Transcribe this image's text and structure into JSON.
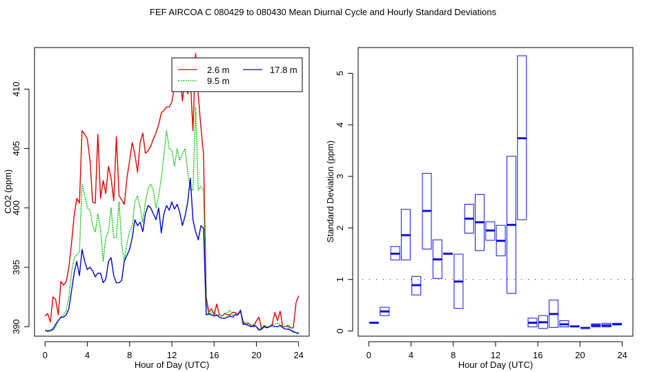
{
  "title": "FEF   AIRCOA C   080429 to 080430   Mean Diurnal Cycle and Hourly Standard Deviations",
  "colors": {
    "red": "#e00000",
    "green": "#00c000",
    "blue": "#0000d0",
    "box": "#1010e0"
  },
  "chart_data": [
    {
      "type": "line",
      "title": "",
      "xlabel": "Hour of Day (UTC)",
      "ylabel": "CO2 (ppm)",
      "xlim": [
        -1,
        25
      ],
      "ylim": [
        389.2,
        413.5
      ],
      "xticks": [
        "0",
        "4",
        "8",
        "12",
        "16",
        "20",
        "24"
      ],
      "yticks": [
        "390",
        "395",
        "400",
        "405",
        "410"
      ],
      "legend_position": "top-right",
      "x": [
        0,
        0.25,
        0.5,
        0.75,
        1,
        1.25,
        1.5,
        1.75,
        2,
        2.25,
        2.5,
        2.75,
        3,
        3.25,
        3.5,
        3.75,
        4,
        4.25,
        4.5,
        4.75,
        5,
        5.25,
        5.5,
        5.75,
        6,
        6.25,
        6.5,
        6.75,
        7,
        7.25,
        7.5,
        7.75,
        8,
        8.25,
        8.5,
        8.75,
        9,
        9.25,
        9.5,
        9.75,
        10,
        10.25,
        10.5,
        10.75,
        11,
        11.25,
        11.5,
        11.75,
        12,
        12.25,
        12.5,
        12.75,
        13,
        13.25,
        13.5,
        13.75,
        14,
        14.25,
        14.5,
        14.75,
        15,
        15.25,
        15.5,
        15.75,
        16,
        16.25,
        16.5,
        16.75,
        17,
        17.25,
        17.5,
        17.75,
        18,
        18.25,
        18.5,
        18.75,
        19,
        19.25,
        19.5,
        19.75,
        20,
        20.25,
        20.5,
        20.75,
        21,
        21.25,
        21.5,
        21.75,
        22,
        22.25,
        22.5,
        22.75,
        23,
        23.25,
        23.5,
        23.75,
        24
      ],
      "series": [
        {
          "name": "2.6 m",
          "color": "#e00000",
          "values": [
            390.9,
            391.1,
            390.4,
            392.5,
            392.3,
            391.0,
            393.8,
            393.5,
            393.8,
            395.0,
            397.0,
            399.3,
            400.8,
            400.4,
            406.5,
            406.2,
            405.8,
            404.0,
            400.5,
            400.4,
            406.2,
            400.8,
            402.3,
            401.2,
            403.5,
            402.5,
            400.6,
            406.0,
            401.0,
            400.7,
            400.3,
            402.5,
            404.0,
            405.5,
            404.5,
            403.0,
            405.5,
            406.3,
            404.6,
            404.8,
            405.2,
            405.8,
            406.3,
            407.0,
            408.0,
            408.2,
            408.5,
            408.5,
            408.9,
            410.3,
            409.8,
            411.5,
            409.0,
            411.0,
            409.6,
            410.8,
            406.5,
            413.0,
            409.5,
            406.8,
            404.5,
            392.5,
            391.2,
            391.5,
            391.0,
            391.9,
            391.0,
            390.9,
            391.1,
            391.0,
            391.0,
            391.2,
            391.2,
            391.0,
            391.3,
            390.4,
            390.2,
            390.3,
            390.1,
            390.0,
            390.5,
            390.8,
            389.8,
            390.1,
            389.9,
            390.0,
            390.2,
            391.2,
            390.5,
            391.3,
            390.0,
            390.0,
            390.1,
            389.9,
            389.9,
            392.0,
            392.6
          ]
        },
        {
          "name": "9.5 m",
          "color": "#00c000",
          "values": [
            389.7,
            389.7,
            389.6,
            389.7,
            390.0,
            390.5,
            390.8,
            391.0,
            391.3,
            392.5,
            394.5,
            395.8,
            396.0,
            396.3,
            402.0,
            401.0,
            400.0,
            399.8,
            398.5,
            398.0,
            399.5,
            398.2,
            395.5,
            397.5,
            398.0,
            400.0,
            397.5,
            397.5,
            400.5,
            397.0,
            395.5,
            397.0,
            398.0,
            398.5,
            400.5,
            401.0,
            400.0,
            398.8,
            400.5,
            401.6,
            402.0,
            401.5,
            400.0,
            401.0,
            402.5,
            404.5,
            406.5,
            405.0,
            404.8,
            403.5,
            405.0,
            404.0,
            404.5,
            405.0,
            403.0,
            401.5,
            401.5,
            408.5,
            401.5,
            401.8,
            401.5,
            392.0,
            391.0,
            391.2,
            391.3,
            390.9,
            391.0,
            390.9,
            391.1,
            391.2,
            391.4,
            391.0,
            391.0,
            391.0,
            391.3,
            390.2,
            390.4,
            390.3,
            390.1,
            390.2,
            390.0,
            389.8,
            389.9,
            390.1,
            390.0,
            390.0,
            390.2,
            390.2,
            390.3,
            390.2,
            390.0,
            390.0,
            390.0,
            389.7,
            389.5,
            389.5,
            389.5
          ]
        },
        {
          "name": "17.8 m",
          "color": "#0000d0",
          "values": [
            389.7,
            389.6,
            389.7,
            389.8,
            390.2,
            390.5,
            390.8,
            390.8,
            391.0,
            391.5,
            393.0,
            394.5,
            395.5,
            394.3,
            396.5,
            395.5,
            394.8,
            395.0,
            394.7,
            394.2,
            394.5,
            394.5,
            393.7,
            394.0,
            395.5,
            395.8,
            394.3,
            393.7,
            393.7,
            393.9,
            395.5,
            396.0,
            396.5,
            397.5,
            399.0,
            398.5,
            398.8,
            398.0,
            399.5,
            400.2,
            400.0,
            399.5,
            399.0,
            400.0,
            397.9,
            399.5,
            400.2,
            399.8,
            400.5,
            399.9,
            400.3,
            399.6,
            398.5,
            399.3,
            400.5,
            402.5,
            399.0,
            398.0,
            397.3,
            398.5,
            398.3,
            391.0,
            391.1,
            391.0,
            390.9,
            391.0,
            390.8,
            390.7,
            390.7,
            390.8,
            390.9,
            390.8,
            391.0,
            391.0,
            391.4,
            390.2,
            390.2,
            390.1,
            390.0,
            390.1,
            390.0,
            389.7,
            389.8,
            390.0,
            389.9,
            390.0,
            390.1,
            390.0,
            390.0,
            390.1,
            389.9,
            389.8,
            389.8,
            389.7,
            389.6,
            389.5,
            389.4
          ]
        }
      ]
    },
    {
      "type": "box",
      "title": "",
      "xlabel": "Hour of Day (UTC)",
      "ylabel": "Standard Deviation (ppm)",
      "xlim": [
        -1,
        25
      ],
      "ylim": [
        -0.1,
        5.5
      ],
      "xticks": [
        "0",
        "4",
        "8",
        "12",
        "16",
        "20",
        "24"
      ],
      "yticks": [
        "0",
        "1",
        "2",
        "3",
        "4",
        "5"
      ],
      "reference_line": 1,
      "boxes": [
        {
          "hour": 0.5,
          "low": 0.15,
          "high": 0.17,
          "median": 0.16
        },
        {
          "hour": 1.5,
          "low": 0.3,
          "high": 0.46,
          "median": 0.38
        },
        {
          "hour": 2.5,
          "low": 1.38,
          "high": 1.64,
          "median": 1.5
        },
        {
          "hour": 3.5,
          "low": 1.38,
          "high": 2.36,
          "median": 1.86
        },
        {
          "hour": 4.5,
          "low": 0.7,
          "high": 1.06,
          "median": 0.89
        },
        {
          "hour": 5.5,
          "low": 1.59,
          "high": 3.06,
          "median": 2.33
        },
        {
          "hour": 6.5,
          "low": 1.02,
          "high": 1.77,
          "median": 1.39
        },
        {
          "hour": 7.5,
          "low": 1.49,
          "high": 1.51,
          "median": 1.5
        },
        {
          "hour": 8.5,
          "low": 0.44,
          "high": 1.49,
          "median": 0.96
        },
        {
          "hour": 9.5,
          "low": 1.9,
          "high": 2.46,
          "median": 2.18
        },
        {
          "hour": 10.5,
          "low": 1.56,
          "high": 2.65,
          "median": 2.11
        },
        {
          "hour": 11.5,
          "low": 1.76,
          "high": 2.12,
          "median": 1.95
        },
        {
          "hour": 12.5,
          "low": 1.46,
          "high": 2.05,
          "median": 1.75
        },
        {
          "hour": 13.5,
          "low": 0.73,
          "high": 3.39,
          "median": 2.06
        },
        {
          "hour": 14.5,
          "low": 2.16,
          "high": 5.34,
          "median": 3.74
        },
        {
          "hour": 15.5,
          "low": 0.08,
          "high": 0.25,
          "median": 0.16
        },
        {
          "hour": 16.5,
          "low": 0.05,
          "high": 0.3,
          "median": 0.17
        },
        {
          "hour": 17.5,
          "low": 0.07,
          "high": 0.6,
          "median": 0.33
        },
        {
          "hour": 18.5,
          "low": 0.08,
          "high": 0.2,
          "median": 0.13
        },
        {
          "hour": 19.5,
          "low": 0.08,
          "high": 0.1,
          "median": 0.09
        },
        {
          "hour": 20.5,
          "low": 0.05,
          "high": 0.07,
          "median": 0.06
        },
        {
          "hour": 21.5,
          "low": 0.08,
          "high": 0.14,
          "median": 0.11
        },
        {
          "hour": 22.5,
          "low": 0.08,
          "high": 0.15,
          "median": 0.11
        },
        {
          "hour": 23.5,
          "low": 0.12,
          "high": 0.15,
          "median": 0.13
        }
      ]
    }
  ]
}
